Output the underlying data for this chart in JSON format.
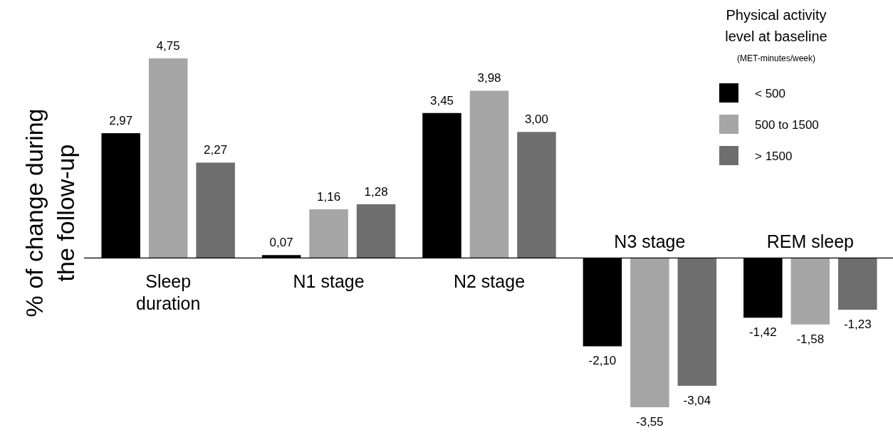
{
  "chart_data": {
    "type": "bar",
    "ylabel": "% of change during the follow-up",
    "legend_title": "Physical activity level at baseline\n(MET-minutes/week)",
    "legend": "top right",
    "categories": [
      "Sleep duration",
      "N1 stage",
      "N2 stage",
      "N3 stage",
      "REM sleep"
    ],
    "series": [
      {
        "name": "< 500",
        "color": "#000000",
        "values": [
          2.97,
          0.07,
          3.45,
          -2.1,
          -1.42
        ],
        "value_labels": [
          "2,97",
          "0,07",
          "3,45",
          "-2,10",
          "-1,42"
        ]
      },
      {
        "name": "500 to 1500",
        "color": "#a6a6a6",
        "values": [
          4.75,
          1.16,
          3.98,
          -3.55,
          -1.58
        ],
        "value_labels": [
          "4,75",
          "1,16",
          "3,98",
          "-3,55",
          "-1,58"
        ]
      },
      {
        "name": "> 1500",
        "color": "#6e6e6e",
        "values": [
          2.27,
          1.28,
          3.0,
          -3.04,
          -1.23
        ],
        "value_labels": [
          "2,27",
          "1,28",
          "3,00",
          "-3,04",
          "-1,23"
        ]
      }
    ]
  }
}
